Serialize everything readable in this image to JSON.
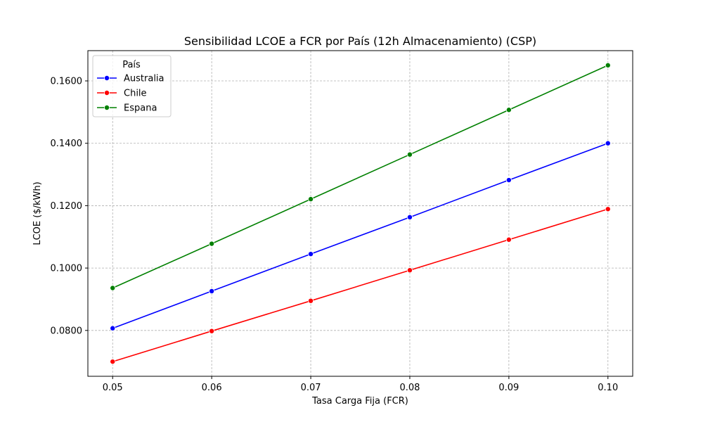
{
  "chart_data": {
    "type": "line",
    "title": "Sensibilidad LCOE a FCR por País (12h Almacenamiento) (CSP)",
    "xlabel": "Tasa Carga Fija (FCR)",
    "ylabel": "LCOE ($/kWh)",
    "x": [
      0.05,
      0.06,
      0.07,
      0.08,
      0.09,
      0.1
    ],
    "x_tick_labels": [
      "0.05",
      "0.06",
      "0.07",
      "0.08",
      "0.09",
      "0.10"
    ],
    "y_ticks": [
      0.08,
      0.1,
      0.12,
      0.14,
      0.16
    ],
    "y_tick_labels": [
      "0.0800",
      "0.1000",
      "0.1200",
      "0.1400",
      "0.1600"
    ],
    "xlim": [
      0.0475,
      0.1025
    ],
    "ylim": [
      0.0653,
      0.1697
    ],
    "grid": true,
    "legend": {
      "title": "País",
      "placement": "top-left"
    },
    "series": [
      {
        "name": "Australia",
        "color": "#0000ff",
        "values": [
          0.0807,
          0.0926,
          0.1045,
          0.1163,
          0.1282,
          0.14
        ]
      },
      {
        "name": "Chile",
        "color": "#ff0000",
        "values": [
          0.07,
          0.0798,
          0.0895,
          0.0993,
          0.1091,
          0.1189
        ]
      },
      {
        "name": "Espana",
        "color": "#008000",
        "values": [
          0.0936,
          0.1078,
          0.1221,
          0.1364,
          0.1507,
          0.165
        ]
      }
    ]
  }
}
